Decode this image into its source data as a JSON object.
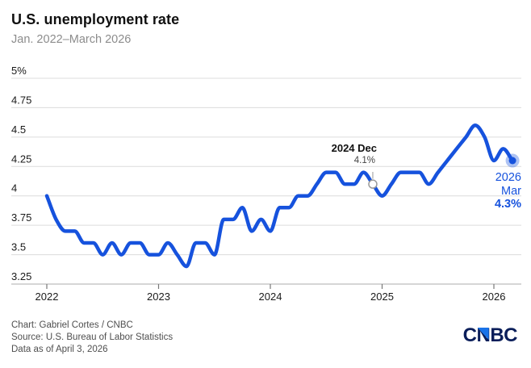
{
  "header": {
    "title": "U.S. unemployment rate",
    "subtitle": "Jan. 2022–March 2026"
  },
  "chart_data": {
    "type": "line",
    "title": "U.S. unemployment rate",
    "subtitle": "Jan. 2022–March 2026",
    "unit": "%",
    "frequency": "monthly",
    "x_start": "Jan 2022",
    "x_end": "Mar 2026",
    "ylim": [
      3.25,
      5.0
    ],
    "grid": "horizontal",
    "y_ticks": [
      {
        "label": "5%",
        "value": 5.0
      },
      {
        "label": "4.75",
        "value": 4.75
      },
      {
        "label": "4.5",
        "value": 4.5
      },
      {
        "label": "4.25",
        "value": 4.25
      },
      {
        "label": "4",
        "value": 4.0
      },
      {
        "label": "3.75",
        "value": 3.75
      },
      {
        "label": "3.5",
        "value": 3.5
      },
      {
        "label": "3.25",
        "value": 3.25
      }
    ],
    "x_ticks": [
      {
        "label": "2022",
        "month_index": 0
      },
      {
        "label": "2023",
        "month_index": 12
      },
      {
        "label": "2024",
        "month_index": 24
      },
      {
        "label": "2025",
        "month_index": 36
      },
      {
        "label": "2026",
        "month_index": 48
      }
    ],
    "series": [
      {
        "name": "U.S. unemployment rate",
        "values": [
          4.0,
          3.8,
          3.7,
          3.7,
          3.6,
          3.6,
          3.5,
          3.6,
          3.5,
          3.6,
          3.6,
          3.5,
          3.5,
          3.6,
          3.5,
          3.4,
          3.6,
          3.6,
          3.5,
          3.8,
          3.8,
          3.9,
          3.7,
          3.8,
          3.7,
          3.9,
          3.9,
          4.0,
          4.0,
          4.1,
          4.2,
          4.2,
          4.1,
          4.1,
          4.2,
          4.1,
          4.0,
          4.1,
          4.2,
          4.2,
          4.2,
          4.1,
          4.2,
          4.3,
          4.4,
          4.5,
          4.6,
          4.5,
          4.3,
          4.4,
          4.3
        ]
      }
    ]
  },
  "annotations": {
    "dec": {
      "label": "2024 Dec",
      "value": "4.1%",
      "month_index": 35
    },
    "end": {
      "year": "2026",
      "month": "Mar",
      "value": "4.3%",
      "month_index": 50
    }
  },
  "footer": {
    "lines": [
      "Chart: Gabriel Cortes / CNBC",
      "Source: U.S. Bureau of Labor Statistics",
      "Data as of April 3, 2026"
    ]
  },
  "logo": {
    "text": "CNBC"
  },
  "colors": {
    "line": "#1652dd",
    "line_halo": "rgba(22,82,221,0.35)",
    "end_label": "#1652dd",
    "logo_navy": "#0a1e5a",
    "logo_triangle": "#1a73e8",
    "gridline": "#dcdcdc",
    "title": "#111111",
    "subtitle": "#8c8c8c",
    "footer": "#4f4f4f"
  }
}
